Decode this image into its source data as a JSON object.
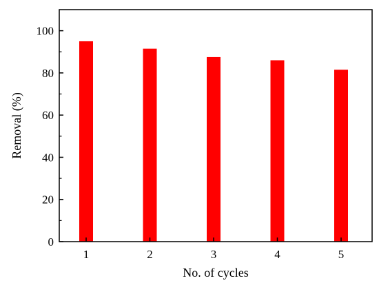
{
  "chart_data": {
    "type": "bar",
    "categories": [
      "1",
      "2",
      "3",
      "4",
      "5"
    ],
    "values": [
      95,
      91.5,
      87.5,
      86,
      81.5
    ],
    "xlabel": "No. of cycles",
    "ylabel": "Removal (%)",
    "ylim": [
      0,
      110
    ],
    "yticks": [
      0,
      20,
      40,
      60,
      80,
      100
    ],
    "grid": false,
    "bar_color": "#ff0000"
  }
}
